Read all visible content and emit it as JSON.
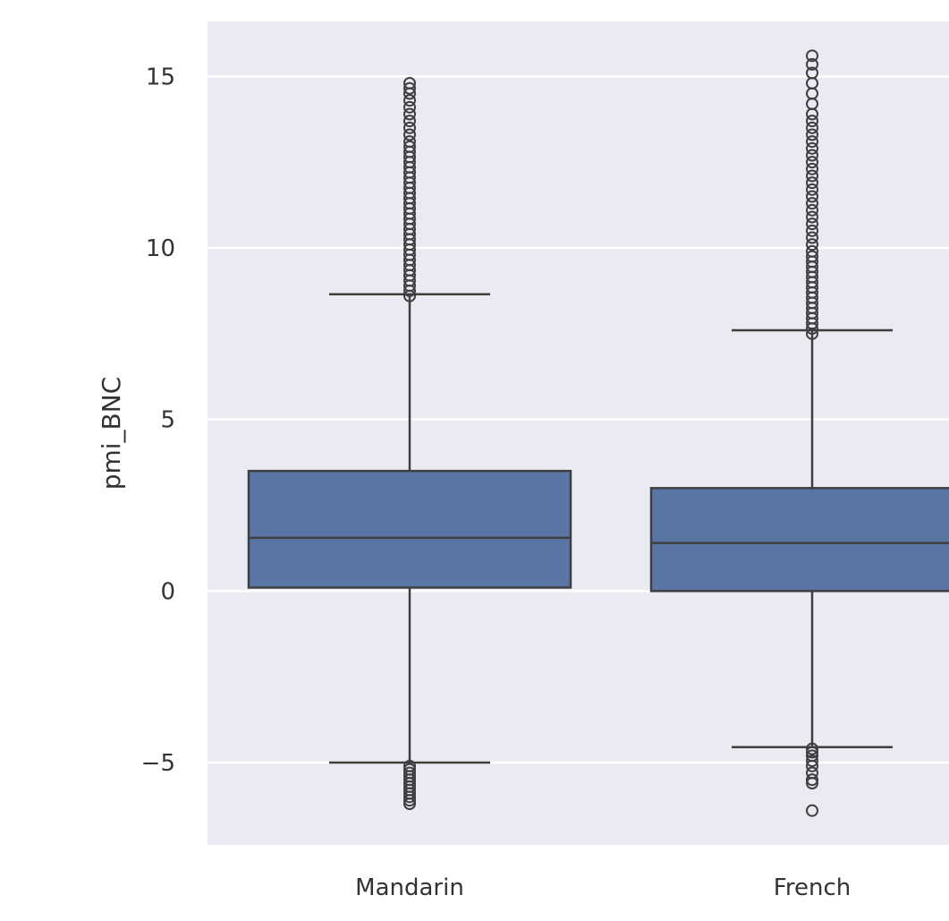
{
  "chart_data": {
    "type": "box",
    "ylabel": "pmi_BNC",
    "xlabel": "",
    "ylim": [
      -7.4,
      16.6
    ],
    "yticks": [
      -5,
      0,
      5,
      10,
      15
    ],
    "ytick_labels": [
      "−5",
      "0",
      "5",
      "10",
      "15"
    ],
    "categories": [
      "Mandarin",
      "French"
    ],
    "grid": true,
    "series_color": "#5875a4",
    "background_color": "#eaeaf2",
    "boxes": [
      {
        "category": "Mandarin",
        "whisker_low": -5.0,
        "q1": 0.1,
        "median": 1.55,
        "q3": 3.5,
        "whisker_high": 8.65,
        "outliers": [
          -6.2,
          -6.1,
          -6.0,
          -5.9,
          -5.8,
          -5.7,
          -5.6,
          -5.5,
          -5.4,
          -5.3,
          -5.2,
          -5.1,
          8.6,
          8.75,
          8.9,
          9.05,
          9.2,
          9.35,
          9.5,
          9.65,
          9.8,
          9.95,
          10.1,
          10.25,
          10.4,
          10.55,
          10.7,
          10.85,
          11.0,
          11.15,
          11.3,
          11.45,
          11.6,
          11.75,
          11.9,
          12.05,
          12.2,
          12.35,
          12.5,
          12.65,
          12.8,
          12.95,
          13.1,
          13.3,
          13.5,
          13.7,
          13.9,
          14.1,
          14.3,
          14.5,
          14.65,
          14.8
        ]
      },
      {
        "category": "French",
        "whisker_low": -4.55,
        "q1": 0.0,
        "median": 1.4,
        "q3": 3.0,
        "whisker_high": 7.6,
        "outliers": [
          -6.4,
          -5.6,
          -5.5,
          -5.3,
          -5.1,
          -4.95,
          -4.8,
          -4.7,
          -4.6,
          7.5,
          7.65,
          7.8,
          7.95,
          8.1,
          8.25,
          8.4,
          8.55,
          8.7,
          8.85,
          9.0,
          9.15,
          9.3,
          9.45,
          9.6,
          9.75,
          9.9,
          10.1,
          10.3,
          10.5,
          10.7,
          10.9,
          11.1,
          11.3,
          11.5,
          11.7,
          11.9,
          12.1,
          12.3,
          12.5,
          12.7,
          12.9,
          13.1,
          13.3,
          13.5,
          13.7,
          13.9,
          14.2,
          14.5,
          14.8,
          15.1,
          15.35,
          15.6
        ]
      }
    ]
  }
}
